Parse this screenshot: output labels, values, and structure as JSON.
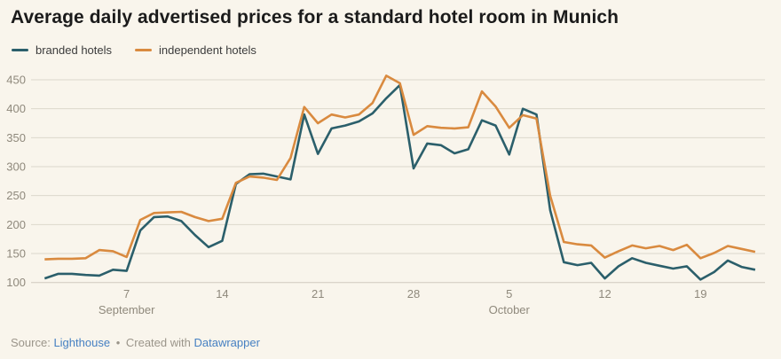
{
  "header": {
    "title": "Average daily advertised prices for a standard hotel room in Munich"
  },
  "legend": [
    {
      "label": "branded hotels",
      "color": "#2b5f6b"
    },
    {
      "label": "independent hotels",
      "color": "#d98a3f"
    }
  ],
  "footer": {
    "source_label": "Source:",
    "source_link": "Lighthouse",
    "separator": "•",
    "created_text": "Created with",
    "tool_link": "Datawrapper"
  },
  "colors": {
    "background": "#f9f5ec",
    "grid": "#dcd8cd",
    "baseline": "#cfcabe",
    "axis_text": "#8f897c",
    "branded": "#2b5f6b",
    "independent": "#d98a3f"
  },
  "chart_data": {
    "type": "line",
    "title": "Average daily advertised prices for a standard hotel room in Munich",
    "xlabel": "",
    "ylabel": "",
    "ylim": [
      100,
      465
    ],
    "yticks": [
      100,
      150,
      200,
      250,
      300,
      350,
      400,
      450
    ],
    "grid": "horizontal",
    "legend_position": "top-left",
    "x": [
      "Sep 1",
      "Sep 2",
      "Sep 3",
      "Sep 4",
      "Sep 5",
      "Sep 6",
      "Sep 7",
      "Sep 8",
      "Sep 9",
      "Sep 10",
      "Sep 11",
      "Sep 12",
      "Sep 13",
      "Sep 14",
      "Sep 15",
      "Sep 16",
      "Sep 17",
      "Sep 18",
      "Sep 19",
      "Sep 20",
      "Sep 21",
      "Sep 22",
      "Sep 23",
      "Sep 24",
      "Sep 25",
      "Sep 26",
      "Sep 27",
      "Sep 28",
      "Sep 29",
      "Sep 30",
      "Oct 1",
      "Oct 2",
      "Oct 3",
      "Oct 4",
      "Oct 5",
      "Oct 6",
      "Oct 7",
      "Oct 8",
      "Oct 9",
      "Oct 10",
      "Oct 11",
      "Oct 12",
      "Oct 13",
      "Oct 14",
      "Oct 15",
      "Oct 16",
      "Oct 17",
      "Oct 18",
      "Oct 19",
      "Oct 20",
      "Oct 21",
      "Oct 22",
      "Oct 23"
    ],
    "xticks": [
      {
        "index": 6,
        "label": "7",
        "month": "September"
      },
      {
        "index": 13,
        "label": "14",
        "month": ""
      },
      {
        "index": 20,
        "label": "21",
        "month": ""
      },
      {
        "index": 27,
        "label": "28",
        "month": ""
      },
      {
        "index": 34,
        "label": "5",
        "month": "October"
      },
      {
        "index": 41,
        "label": "12",
        "month": ""
      },
      {
        "index": 48,
        "label": "19",
        "month": ""
      }
    ],
    "series": [
      {
        "name": "branded hotels",
        "color": "#2b5f6b",
        "values": [
          107,
          115,
          115,
          113,
          112,
          122,
          120,
          190,
          213,
          214,
          206,
          182,
          161,
          172,
          270,
          287,
          288,
          283,
          278,
          390,
          322,
          366,
          371,
          378,
          392,
          418,
          441,
          297,
          340,
          337,
          323,
          330,
          380,
          371,
          321,
          400,
          390,
          225,
          135,
          130,
          134,
          107,
          128,
          142,
          134,
          129,
          124,
          128,
          105,
          118,
          138,
          127,
          122
        ]
      },
      {
        "name": "independent hotels",
        "color": "#d98a3f",
        "values": [
          140,
          141,
          141,
          142,
          156,
          154,
          144,
          208,
          220,
          221,
          222,
          213,
          206,
          210,
          272,
          283,
          281,
          277,
          315,
          403,
          375,
          390,
          385,
          390,
          410,
          457,
          444,
          355,
          370,
          367,
          366,
          368,
          430,
          404,
          367,
          389,
          383,
          250,
          170,
          166,
          164,
          143,
          154,
          164,
          159,
          163,
          156,
          165,
          142,
          151,
          163,
          158,
          153
        ]
      }
    ]
  }
}
